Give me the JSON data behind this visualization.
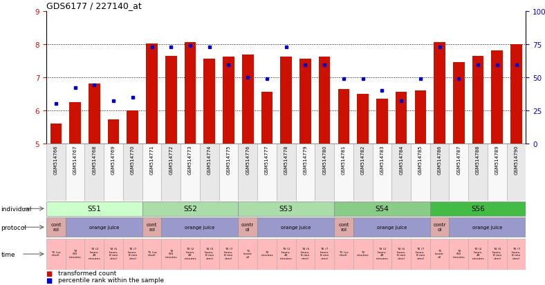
{
  "title": "GDS6177 / 227140_at",
  "samples": [
    "GSM514766",
    "GSM514767",
    "GSM514768",
    "GSM514769",
    "GSM514770",
    "GSM514771",
    "GSM514772",
    "GSM514773",
    "GSM514774",
    "GSM514775",
    "GSM514776",
    "GSM514777",
    "GSM514778",
    "GSM514779",
    "GSM514780",
    "GSM514781",
    "GSM514782",
    "GSM514783",
    "GSM514784",
    "GSM514785",
    "GSM514786",
    "GSM514787",
    "GSM514788",
    "GSM514789",
    "GSM514790"
  ],
  "bar_values": [
    5.6,
    6.25,
    6.8,
    5.73,
    6.0,
    8.01,
    7.63,
    8.05,
    7.55,
    7.62,
    7.68,
    6.55,
    7.62,
    7.55,
    7.62,
    6.65,
    6.5,
    6.35,
    6.55,
    6.6,
    8.05,
    7.45,
    7.65,
    7.8,
    8.0
  ],
  "dot_percentile": [
    30,
    42,
    44,
    32,
    35,
    73,
    73,
    74,
    73,
    59,
    50,
    49,
    73,
    59,
    59,
    49,
    49,
    40,
    32,
    49,
    73,
    49,
    59,
    59,
    59
  ],
  "ylim": [
    5,
    9
  ],
  "yticks": [
    5,
    6,
    7,
    8,
    9
  ],
  "right_yticks": [
    0,
    25,
    50,
    75,
    100
  ],
  "bar_color": "#cc1100",
  "dot_color": "#0000cc",
  "individuals": [
    {
      "label": "S51",
      "start": 0,
      "end": 4,
      "color": "#ccffcc"
    },
    {
      "label": "S52",
      "start": 5,
      "end": 9,
      "color": "#aaddaa"
    },
    {
      "label": "S53",
      "start": 10,
      "end": 14,
      "color": "#aaddaa"
    },
    {
      "label": "S54",
      "start": 15,
      "end": 19,
      "color": "#88cc88"
    },
    {
      "label": "S56",
      "start": 20,
      "end": 24,
      "color": "#44bb44"
    }
  ],
  "protocols": [
    {
      "label": "cont\nrol",
      "start": 0,
      "end": 0,
      "is_control": true
    },
    {
      "label": "orange juice",
      "start": 1,
      "end": 4,
      "is_control": false
    },
    {
      "label": "cont\nrol",
      "start": 5,
      "end": 5,
      "is_control": true
    },
    {
      "label": "orange juice",
      "start": 6,
      "end": 9,
      "is_control": false
    },
    {
      "label": "contr\nol",
      "start": 10,
      "end": 10,
      "is_control": true
    },
    {
      "label": "orange juice",
      "start": 11,
      "end": 14,
      "is_control": false
    },
    {
      "label": "cont\nrol",
      "start": 15,
      "end": 15,
      "is_control": true
    },
    {
      "label": "orange juice",
      "start": 16,
      "end": 19,
      "is_control": false
    },
    {
      "label": "contr\nol",
      "start": 20,
      "end": 20,
      "is_control": true
    },
    {
      "label": "orange juice",
      "start": 21,
      "end": 24,
      "is_control": false
    }
  ],
  "time_labels": [
    "T1 (co\nntrol)",
    "T2\n(90\nminutes",
    "T3 (2\nhours,\n49\nminutes",
    "T4 (5\nhours,\n8 min\nutes)",
    "T5 (7\nhours,\n8 min\nutes)",
    "T1 (co\nntrol)",
    "T2\n(90\nminutes",
    "T3 (2\nhours,\n49\nminutes",
    "T4 (5\nhours,\n8 min\nutes)",
    "T5 (7\nhours,\n8 min\nutes)",
    "T1\n(contr\nol)",
    "T2\nminutes",
    "T3 (2\nhours,\n49\nminutes",
    "T4 (5\nhours,\n8 min\nutes)",
    "T5 (7\nhours,\n8 min\nutes)",
    "T1 (co\nntrol)",
    "T2\nminutes",
    "T3 (2\nhours,\n49\nminutes",
    "T4 (5\nhours,\n8 min\nutes)",
    "T5 (7\nhours,\n8 min\nutes)",
    "T1\n(contr\nol)",
    "T2\n(90\nminutes",
    "T3 (2\nhours,\n49\nminutes",
    "T4 (5\nhours,\n8 min\nutes)",
    "T5 (7\nhours,\n8 min\nutes)"
  ],
  "control_color": "#ddaaaa",
  "oj_color": "#9999cc",
  "time_color": "#ffbbbb",
  "legend_bar_label": "transformed count",
  "legend_dot_label": "percentile rank within the sample"
}
